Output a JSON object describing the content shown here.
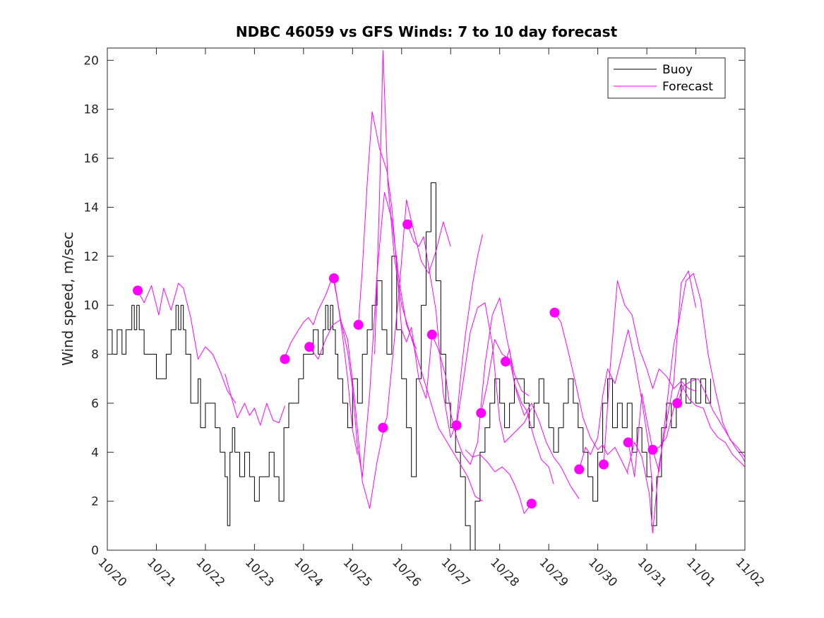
{
  "chart_data": {
    "type": "line",
    "title": "NDBC 46059 vs GFS Winds: 7 to 10 day forecast",
    "xlabel": "",
    "ylabel": "Wind speed, m/sec",
    "xlim": [
      0,
      13
    ],
    "ylim": [
      0,
      20.5
    ],
    "x_tick_labels": [
      "10/20",
      "10/21",
      "10/22",
      "10/23",
      "10/24",
      "10/25",
      "10/26",
      "10/27",
      "10/28",
      "10/29",
      "10/30",
      "10/31",
      "11/01",
      "11/02"
    ],
    "y_ticks": [
      0,
      2,
      4,
      6,
      8,
      10,
      12,
      14,
      16,
      18,
      20
    ],
    "legend": {
      "location": "top-right",
      "entries": [
        {
          "label": "Buoy",
          "color": "#000000"
        },
        {
          "label": "Forecast",
          "color": "#ff00ff"
        }
      ]
    },
    "series": [
      {
        "name": "Buoy",
        "color": "#000000",
        "x": [
          0,
          0.1,
          0.2,
          0.3,
          0.38,
          0.45,
          0.5,
          0.55,
          0.6,
          0.65,
          0.75,
          0.85,
          1.0,
          1.1,
          1.2,
          1.3,
          1.4,
          1.45,
          1.5,
          1.55,
          1.6,
          1.7,
          1.8,
          1.85,
          1.9,
          2.0,
          2.1,
          2.2,
          2.3,
          2.4,
          2.45,
          2.5,
          2.55,
          2.6,
          2.7,
          2.8,
          2.9,
          3.0,
          3.1,
          3.2,
          3.3,
          3.4,
          3.5,
          3.6,
          3.7,
          3.8,
          3.9,
          4.0,
          4.1,
          4.2,
          4.3,
          4.4,
          4.45,
          4.5,
          4.55,
          4.6,
          4.65,
          4.7,
          4.8,
          4.9,
          5.0,
          5.1,
          5.2,
          5.3,
          5.4,
          5.5,
          5.6,
          5.7,
          5.8,
          5.9,
          6.0,
          6.1,
          6.2,
          6.3,
          6.4,
          6.5,
          6.6,
          6.7,
          6.8,
          6.9,
          7.0,
          7.1,
          7.2,
          7.3,
          7.4,
          7.5,
          7.6,
          7.7,
          7.8,
          7.9,
          8.0,
          8.1,
          8.2,
          8.3,
          8.4,
          8.5,
          8.6,
          8.7,
          8.8,
          8.9,
          9.0,
          9.1,
          9.2,
          9.3,
          9.4,
          9.5,
          9.6,
          9.7,
          9.8,
          9.9,
          10.0,
          10.1,
          10.2,
          10.3,
          10.4,
          10.5,
          10.6,
          10.7,
          10.8,
          10.9,
          11.0,
          11.1,
          11.2,
          11.3,
          11.4,
          11.5,
          11.6,
          11.7,
          11.8,
          11.9,
          12.0,
          12.1,
          12.2,
          12.3
        ],
        "values": [
          9,
          8,
          9,
          8,
          9,
          9,
          10,
          9,
          10,
          9,
          8,
          8,
          7,
          7,
          8,
          9,
          10,
          9,
          10,
          9,
          8,
          6,
          6,
          7,
          5,
          6,
          6,
          5,
          4,
          3,
          1,
          4,
          5,
          4,
          3,
          4,
          3,
          2,
          3,
          3,
          4,
          3,
          2,
          5,
          6,
          6,
          7,
          8,
          8,
          9,
          8,
          9,
          10,
          9,
          10,
          9,
          8,
          7,
          6,
          5,
          7,
          6,
          8,
          9,
          10,
          11,
          9,
          8,
          12,
          9,
          7,
          5,
          3,
          7,
          10,
          13,
          15,
          11,
          8,
          6,
          5,
          4,
          3,
          1,
          0,
          2,
          4,
          5,
          6,
          7,
          6,
          5,
          6,
          7,
          7,
          6,
          5,
          6,
          7,
          6,
          5,
          4,
          5,
          6,
          7,
          6,
          5,
          4,
          3,
          2,
          4,
          6,
          7,
          5,
          6,
          5,
          6,
          4,
          5,
          4,
          3,
          1,
          3,
          5,
          6,
          5,
          6,
          7,
          6,
          7,
          6,
          7,
          6,
          7
        ]
      },
      {
        "name": "Forecast",
        "color": "#ff00ff",
        "x": [
          0.62,
          0.75,
          0.9,
          1.05,
          1.15,
          1.3,
          1.45,
          1.55,
          1.7,
          1.85,
          2.0,
          2.15,
          2.3,
          2.45,
          2.62
        ],
        "values": [
          10.6,
          10.1,
          10.8,
          9.6,
          10.7,
          9.8,
          10.9,
          10.7,
          9.5,
          7.8,
          8.3,
          8.0,
          7.3,
          6.5,
          6.0
        ]
      },
      {
        "name": "Forecast",
        "color": "#ff00ff",
        "x": [
          2.4,
          2.55,
          2.65,
          2.8,
          2.9,
          3.0,
          3.12,
          3.25,
          3.38,
          3.5,
          3.62
        ],
        "values": [
          7.2,
          6.1,
          5.4,
          6.0,
          5.5,
          5.8,
          5.1,
          6.0,
          5.3,
          5.2,
          5.9
        ]
      },
      {
        "name": "Forecast",
        "color": "#ff00ff",
        "x": [
          3.6,
          3.75,
          3.9,
          4.0,
          4.1,
          4.2,
          4.3,
          4.45,
          4.6,
          4.7,
          4.8,
          4.9,
          5.0,
          5.1
        ],
        "values": [
          7.8,
          8.5,
          9.0,
          9.3,
          9.5,
          9.2,
          9.8,
          10.4,
          11.2,
          10.1,
          8.7,
          7.0,
          4.9,
          3.9
        ]
      },
      {
        "name": "Forecast",
        "color": "#ff00ff",
        "x": [
          4.12,
          4.3,
          4.45,
          4.6,
          4.75,
          4.9,
          5.05,
          5.2,
          5.35,
          5.5,
          5.65
        ],
        "values": [
          8.3,
          7.8,
          8.6,
          9.2,
          9.4,
          8.6,
          6.0,
          2.8,
          1.7,
          3.6,
          5.1
        ]
      },
      {
        "name": "Forecast",
        "color": "#ff00ff",
        "x": [
          4.62,
          4.75,
          4.9,
          5.0,
          5.1,
          5.2,
          5.35,
          5.5,
          5.65,
          5.8,
          5.95,
          6.1,
          6.3
        ],
        "values": [
          11.1,
          9.5,
          8.1,
          6.6,
          4.2,
          3.0,
          6.4,
          11.3,
          14.6,
          13.5,
          11.0,
          9.2,
          8.2
        ]
      },
      {
        "name": "Forecast",
        "color": "#ff00ff",
        "x": [
          5.12,
          5.2,
          5.3,
          5.4,
          5.55,
          5.7,
          5.8,
          5.9,
          6.0,
          6.1,
          6.2,
          6.35,
          6.5,
          6.62
        ],
        "values": [
          9.2,
          11.5,
          15.0,
          17.9,
          16.4,
          15.5,
          14.0,
          11.6,
          9.0,
          8.5,
          9.1,
          7.0,
          6.2,
          8.8
        ]
      },
      {
        "name": "Forecast",
        "color": "#ff00ff",
        "x": [
          5.62,
          5.7,
          5.8,
          5.95,
          6.1,
          6.25,
          6.4,
          6.55,
          6.7,
          6.85,
          7.0
        ],
        "values": [
          5.0,
          5.4,
          7.5,
          10.6,
          14.3,
          13.0,
          11.8,
          11.3,
          12.2,
          13.4,
          12.4
        ]
      },
      {
        "name": "Forecast",
        "color": "#ff00ff",
        "x": [
          5.45,
          5.55,
          5.62,
          5.72,
          5.85,
          6.0,
          6.15,
          6.3,
          6.45,
          6.6,
          6.75,
          6.9,
          7.05,
          7.2,
          7.35,
          7.5,
          7.65
        ],
        "values": [
          8.0,
          14.4,
          20.4,
          15.0,
          12.0,
          10.0,
          9.0,
          8.0,
          7.0,
          6.0,
          5.0,
          4.5,
          4.0,
          3.5,
          3.0,
          2.2,
          2.0
        ]
      },
      {
        "name": "Forecast",
        "color": "#ff00ff",
        "x": [
          6.12,
          6.25,
          6.35,
          6.45,
          6.55,
          6.7,
          6.85,
          7.0,
          7.12,
          7.2,
          7.3,
          7.45,
          7.55,
          7.65
        ],
        "values": [
          13.3,
          12.6,
          12.4,
          12.8,
          11.6,
          9.8,
          6.4,
          4.6,
          5.2,
          7.0,
          8.8,
          10.9,
          12.0,
          12.9
        ]
      },
      {
        "name": "Forecast",
        "color": "#ff00ff",
        "x": [
          6.62,
          6.75,
          6.9,
          7.0,
          7.12,
          7.25,
          7.4,
          7.55,
          7.7,
          7.85,
          8.0,
          8.15,
          8.3,
          8.45,
          8.6
        ],
        "values": [
          8.8,
          8.2,
          7.1,
          5.6,
          4.6,
          3.9,
          3.5,
          4.4,
          7.6,
          9.6,
          10.3,
          8.6,
          7.2,
          6.5,
          6.3
        ]
      },
      {
        "name": "Forecast",
        "color": "#ff00ff",
        "x": [
          7.12,
          7.25,
          7.4,
          7.55,
          7.7,
          7.85,
          8.0,
          8.1,
          8.2,
          8.35,
          8.5,
          8.65
        ],
        "values": [
          5.1,
          6.8,
          8.9,
          9.9,
          10.1,
          8.4,
          5.3,
          4.4,
          4.6,
          4.9,
          5.2,
          5.8
        ]
      },
      {
        "name": "Forecast",
        "color": "#ff00ff",
        "x": [
          7.62,
          7.75,
          7.9,
          8.05,
          8.2,
          8.35,
          8.5,
          8.65,
          8.8,
          8.95,
          9.1,
          9.25,
          9.45,
          9.62
        ],
        "values": [
          5.6,
          6.8,
          8.6,
          8.0,
          7.8,
          6.4,
          5.5,
          6.0,
          5.3,
          4.4,
          3.8,
          3.4,
          2.6,
          2.1
        ]
      },
      {
        "name": "Forecast",
        "color": "#ff00ff",
        "x": [
          8.12,
          8.2,
          8.3,
          8.45,
          8.55,
          8.7,
          8.85,
          9.0,
          9.1
        ],
        "values": [
          7.7,
          8.2,
          6.8,
          6.0,
          5.7,
          4.6,
          3.7,
          3.4,
          2.7
        ]
      },
      {
        "name": "Forecast",
        "color": "#ff00ff",
        "x": [
          8.65,
          8.5,
          8.4,
          8.3,
          8.2,
          8.05,
          7.9,
          7.75,
          7.6,
          7.45,
          7.3
        ],
        "values": [
          1.9,
          1.5,
          2.2,
          2.7,
          3.1,
          3.4,
          3.2,
          3.6,
          3.9,
          3.8,
          4.1
        ]
      },
      {
        "name": "Forecast",
        "color": "#ff00ff",
        "x": [
          9.12,
          9.25,
          9.4,
          9.55,
          9.7,
          9.85,
          10.0,
          10.1,
          10.2,
          10.35,
          10.5,
          10.62
        ],
        "values": [
          9.7,
          9.3,
          8.1,
          6.8,
          5.4,
          4.6,
          4.1,
          4.3,
          3.9,
          4.2,
          3.6,
          3.1
        ]
      },
      {
        "name": "Forecast",
        "color": "#ff00ff",
        "x": [
          9.62,
          9.75,
          9.85,
          10.0,
          10.1,
          10.2,
          10.35,
          10.5,
          10.62,
          10.75,
          10.9,
          11.05,
          11.12
        ],
        "values": [
          3.3,
          4.2,
          3.9,
          4.6,
          6.3,
          7.4,
          6.8,
          8.0,
          9.0,
          7.8,
          6.1,
          4.1,
          2.4
        ]
      },
      {
        "name": "Forecast",
        "color": "#ff00ff",
        "x": [
          10.12,
          10.25,
          10.4,
          10.55,
          10.7,
          10.85,
          11.0,
          11.12,
          11.25,
          11.4,
          11.55,
          11.7,
          11.85,
          12.0
        ],
        "values": [
          3.5,
          7.4,
          11.0,
          10.0,
          9.6,
          8.2,
          7.4,
          6.6,
          7.4,
          7.1,
          6.6,
          6.9,
          6.6,
          6.5
        ]
      },
      {
        "name": "Forecast",
        "color": "#ff00ff",
        "x": [
          10.62,
          10.75,
          10.9,
          11.0,
          11.12,
          11.25,
          11.4,
          11.55,
          11.7,
          11.85,
          12.0,
          12.15,
          12.3,
          12.45,
          12.6,
          12.75,
          12.9,
          13.0
        ],
        "values": [
          4.4,
          3.0,
          6.4,
          5.3,
          4.1,
          4.2,
          4.6,
          5.8,
          6.8,
          6.2,
          5.9,
          5.8,
          5.0,
          4.6,
          4.4,
          3.9,
          3.6,
          3.4
        ]
      },
      {
        "name": "Forecast",
        "color": "#ff00ff",
        "x": [
          11.12,
          11.25,
          11.4,
          11.55,
          11.65,
          11.8,
          11.95,
          12.1,
          12.25,
          12.4,
          12.55,
          12.7,
          12.85,
          13.0
        ],
        "values": [
          4.1,
          3.2,
          5.8,
          8.4,
          9.3,
          11.0,
          11.3,
          10.2,
          8.0,
          6.5,
          5.2,
          4.5,
          4.2,
          3.8
        ]
      },
      {
        "name": "Forecast",
        "color": "#ff00ff",
        "x": [
          11.62,
          11.75,
          11.9,
          12.05,
          12.2,
          12.35,
          12.5,
          12.65,
          12.8,
          12.95,
          13.0
        ],
        "values": [
          6.0,
          6.7,
          6.9,
          7.0,
          6.4,
          5.7,
          5.2,
          4.7,
          4.2,
          3.8,
          3.6
        ]
      },
      {
        "name": "Forecast",
        "color": "#ff00ff",
        "x": [
          10.6,
          10.75,
          10.9,
          11.05,
          11.12,
          11.25,
          11.4,
          11.55,
          11.7,
          11.85,
          12.0
        ],
        "values": [
          3.2,
          4.4,
          3.8,
          2.3,
          0.7,
          3.5,
          5.2,
          6.9,
          10.9,
          11.4,
          9.9
        ]
      }
    ],
    "markers": {
      "name": "Forecast start points",
      "color": "#ff00ff",
      "x": [
        0.62,
        3.62,
        4.12,
        4.62,
        5.12,
        5.62,
        6.12,
        6.62,
        7.12,
        7.62,
        8.12,
        8.65,
        9.12,
        9.62,
        10.12,
        10.62,
        11.12,
        11.62
      ],
      "values": [
        10.6,
        7.8,
        8.3,
        11.1,
        9.2,
        5.0,
        13.3,
        8.8,
        5.1,
        5.6,
        7.7,
        1.9,
        9.7,
        3.3,
        3.5,
        4.4,
        4.1,
        6.0
      ]
    }
  }
}
